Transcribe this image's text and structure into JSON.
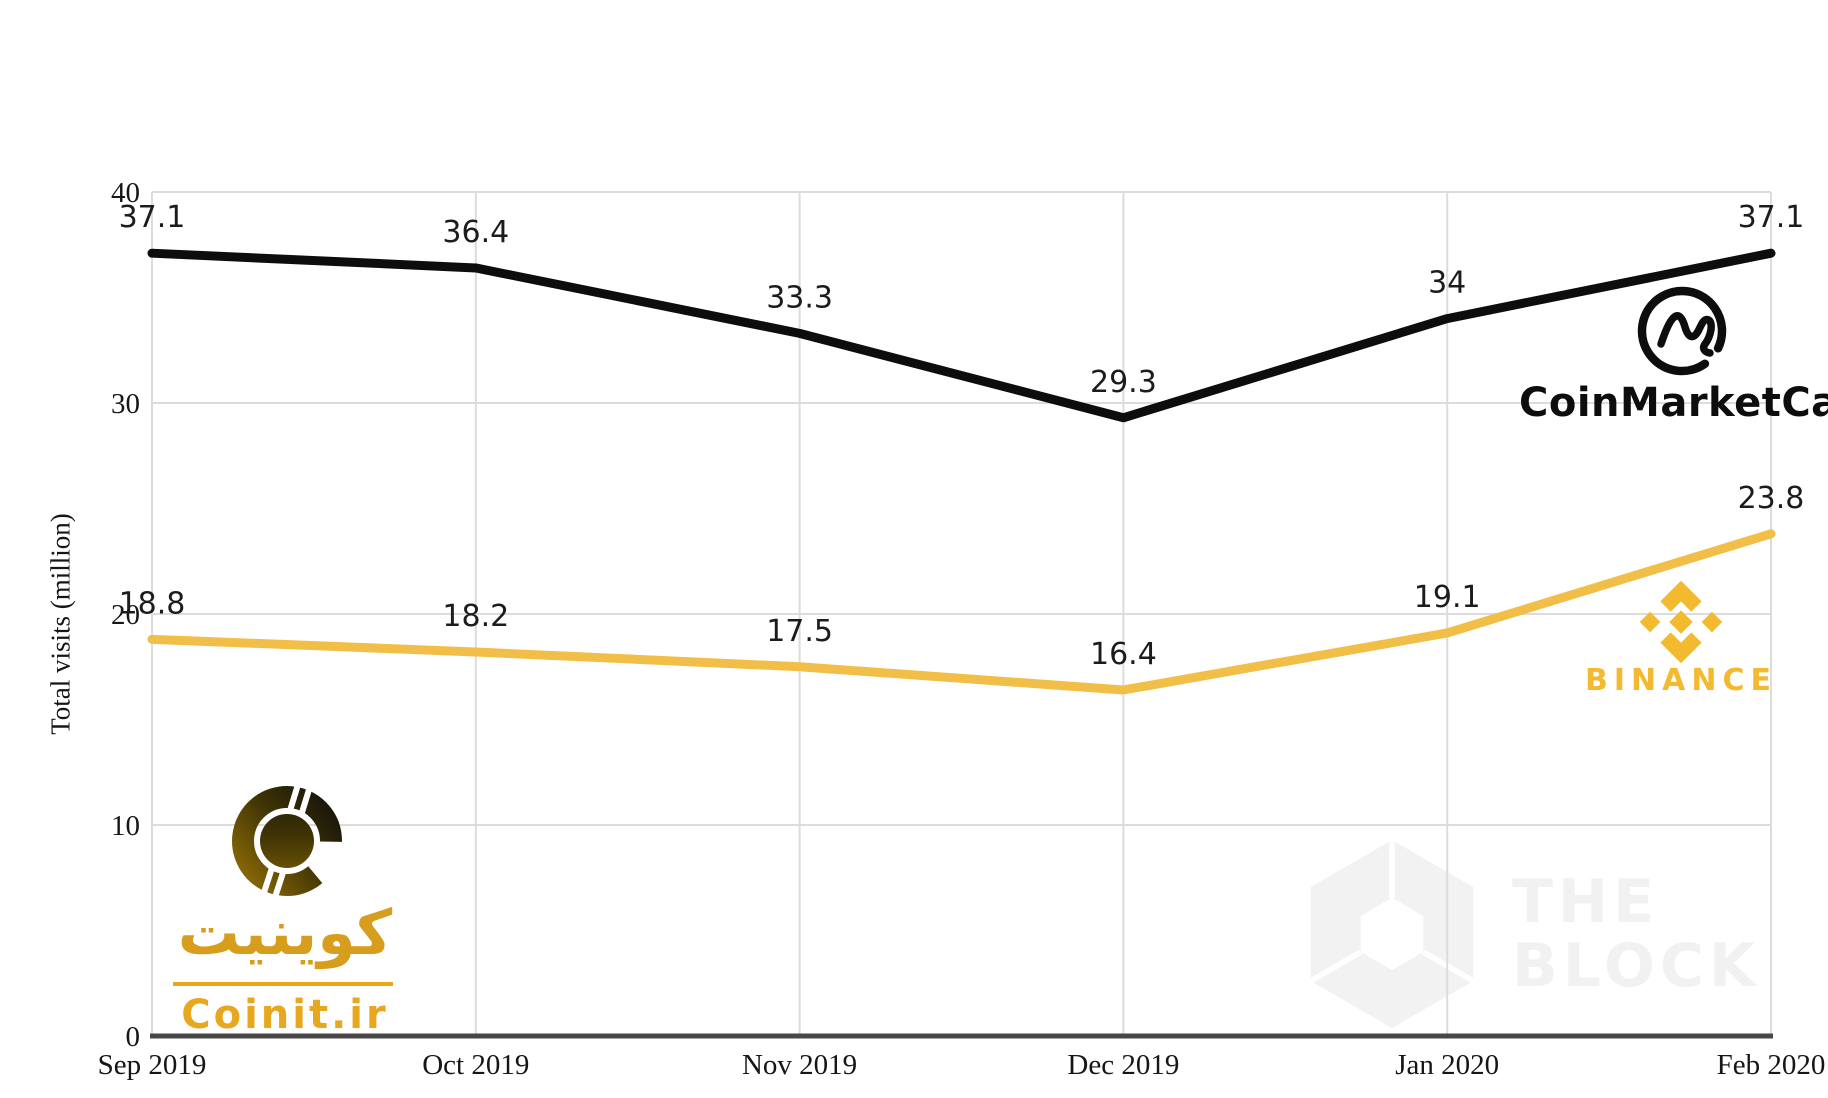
{
  "chart_data": {
    "type": "line",
    "title": "",
    "x_categories": [
      "Sep 2019",
      "Oct 2019",
      "Nov 2019",
      "Dec 2019",
      "Jan 2020",
      "Feb 2020"
    ],
    "ylabel": "Total visits (million)",
    "ylim": [
      0,
      40
    ],
    "yticks": [
      "0",
      "10",
      "20",
      "30",
      "40"
    ],
    "grid": true,
    "legend_position": "none",
    "series": [
      {
        "name": "CoinMarketCap",
        "color": "#0d0d0d",
        "values": [
          37.1,
          36.4,
          33.3,
          29.3,
          34,
          37.1
        ],
        "labels": [
          "37.1",
          "36.4",
          "33.3",
          "29.3",
          "34",
          "37.1"
        ]
      },
      {
        "name": "Binance",
        "color": "#F1BF47",
        "values": [
          18.8,
          18.2,
          17.5,
          16.4,
          19.1,
          23.8
        ],
        "labels": [
          "18.8",
          "18.2",
          "17.5",
          "16.4",
          "19.1",
          "23.8"
        ]
      }
    ]
  },
  "logos": {
    "coinmarketcap": {
      "label": "CoinMarketCap",
      "color": "#0d0d0d"
    },
    "binance": {
      "label": "BINANCE",
      "color": "#F3BA2F"
    },
    "coinit": {
      "persian": "کوینیت",
      "latin": "Coinit.ir",
      "gold": "#D79E1D",
      "accent": "#E7A71F"
    },
    "theblock": {
      "line1": "THE",
      "line2": "BLOCK",
      "color": "#f1f1f1"
    }
  }
}
